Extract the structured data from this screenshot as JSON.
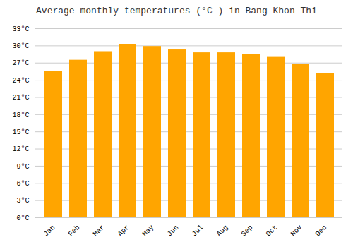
{
  "chart_data": {
    "type": "bar",
    "title": "Average monthly temperatures (°C ) in Bang Khon Thi",
    "categories": [
      "Jan",
      "Feb",
      "Mar",
      "Apr",
      "May",
      "Jun",
      "Jul",
      "Aug",
      "Sep",
      "Oct",
      "Nov",
      "Dec"
    ],
    "values": [
      25.5,
      27.5,
      29.0,
      30.2,
      29.9,
      29.3,
      28.8,
      28.8,
      28.5,
      28.0,
      26.8,
      25.2
    ],
    "color": "#FFA500",
    "ylim": [
      0,
      33
    ],
    "yticks": [
      {
        "value": 0,
        "label": "0°C"
      },
      {
        "value": 3,
        "label": "3°C"
      },
      {
        "value": 6,
        "label": "6°C"
      },
      {
        "value": 9,
        "label": "9°C"
      },
      {
        "value": 12,
        "label": "12°C"
      },
      {
        "value": 15,
        "label": "15°C"
      },
      {
        "value": 18,
        "label": "18°C"
      },
      {
        "value": 21,
        "label": "21°C"
      },
      {
        "value": 24,
        "label": "24°C"
      },
      {
        "value": 27,
        "label": "27°C"
      },
      {
        "value": 30,
        "label": "30°C"
      },
      {
        "value": 33,
        "label": "33°C"
      }
    ],
    "grid": true
  }
}
